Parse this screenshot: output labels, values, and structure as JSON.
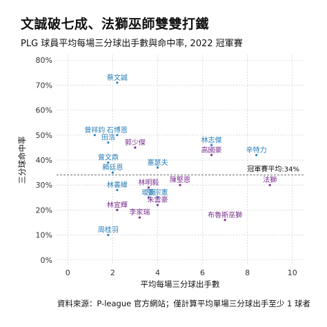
{
  "header": {
    "title": "文誠破七成、法獅巫師雙雙打鐵",
    "subtitle": "PLG 球員平均每場三分球出手數與命中率, 2022 冠軍賽"
  },
  "caption": "資料來源：P-league 官方網站；僅計算平均單場三分球出手至少 1 球者",
  "colors": {
    "team_a": "#2a7fb8",
    "team_b": "#7a2f8f",
    "grid": "#d4d4d4",
    "ref_line": "#555555"
  },
  "chart_data": {
    "type": "scatter",
    "xlabel": "平均每場三分球出手數",
    "ylabel": "三分球命中率",
    "xlim": [
      -0.5,
      10.5
    ],
    "ylim": [
      -0.02,
      0.82
    ],
    "x_ticks": [
      "0",
      "2",
      "4",
      "6",
      "8",
      "10"
    ],
    "y_ticks": [
      "0%",
      "10%",
      "20%",
      "30%",
      "40%",
      "50%",
      "60%",
      "70%",
      "80%"
    ],
    "grid": true,
    "reference_line": {
      "y": 0.34,
      "label": "冠軍賽平均:34%"
    },
    "points": [
      {
        "name": "蔡文誠",
        "x": 2.2,
        "y": 0.71,
        "team": "a"
      },
      {
        "name": "曾祥鈞",
        "x": 1.2,
        "y": 0.5,
        "team": "a"
      },
      {
        "name": "石博恩",
        "x": 2.2,
        "y": 0.5,
        "team": "a"
      },
      {
        "name": "田浩",
        "x": 1.8,
        "y": 0.47,
        "team": "a"
      },
      {
        "name": "郭少傑",
        "x": 3.0,
        "y": 0.45,
        "team": "b"
      },
      {
        "name": "林志傑",
        "x": 6.4,
        "y": 0.46,
        "team": "a"
      },
      {
        "name": "高國豪",
        "x": 6.4,
        "y": 0.42,
        "team": "b"
      },
      {
        "name": "辛特力",
        "x": 8.4,
        "y": 0.42,
        "team": "a"
      },
      {
        "name": "曾文鼎",
        "x": 1.8,
        "y": 0.39,
        "team": "a"
      },
      {
        "name": "賴廷恩",
        "x": 2.0,
        "y": 0.35,
        "team": "a"
      },
      {
        "name": "塞瑟夫",
        "x": 4.0,
        "y": 0.37,
        "team": "a"
      },
      {
        "name": "林書緯",
        "x": 2.2,
        "y": 0.28,
        "team": "a"
      },
      {
        "name": "林明毅",
        "x": 3.6,
        "y": 0.29,
        "team": "b"
      },
      {
        "name": "陳堅恩",
        "x": 5.0,
        "y": 0.3,
        "team": "b"
      },
      {
        "name": "法獅",
        "x": 9.0,
        "y": 0.3,
        "team": "b"
      },
      {
        "name": "璦斯",
        "x": 3.6,
        "y": 0.25,
        "team": "a"
      },
      {
        "name": "張宗憲",
        "x": 4.0,
        "y": 0.25,
        "team": "a"
      },
      {
        "name": "林宜輝",
        "x": 2.2,
        "y": 0.2,
        "team": "b"
      },
      {
        "name": "朱雲豪",
        "x": 4.0,
        "y": 0.22,
        "team": "b"
      },
      {
        "name": "李家瑞",
        "x": 3.2,
        "y": 0.17,
        "team": "b"
      },
      {
        "name": "布魯斯巫獅",
        "x": 7.0,
        "y": 0.16,
        "team": "b"
      },
      {
        "name": "周桂羽",
        "x": 1.8,
        "y": 0.1,
        "team": "a"
      }
    ]
  }
}
